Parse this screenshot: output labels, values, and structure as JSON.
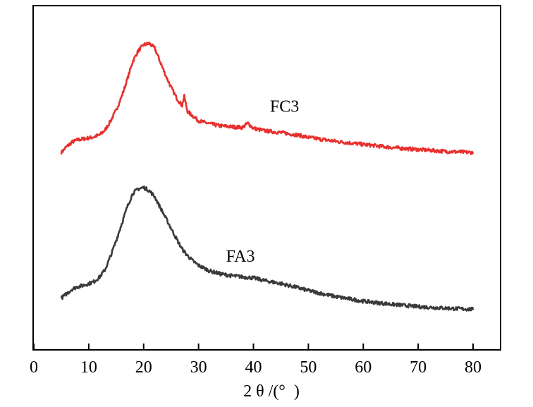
{
  "chart_data": {
    "type": "line",
    "title": "",
    "xlabel": "2 θ /(°  )",
    "ylabel": "",
    "xlim": [
      0,
      85
    ],
    "ylim": [
      0,
      1
    ],
    "x_ticks": [
      0,
      10,
      20,
      30,
      40,
      50,
      60,
      70,
      80
    ],
    "y_ticks_shown": false,
    "grid": false,
    "legend": "none",
    "series": [
      {
        "name": "FC3",
        "color": "#e8302e",
        "label_at": [
          43,
          0.725
        ],
        "points": [
          [
            5,
            0.59
          ],
          [
            6,
            0.61
          ],
          [
            7,
            0.625
          ],
          [
            8,
            0.632
          ],
          [
            9,
            0.635
          ],
          [
            10,
            0.638
          ],
          [
            11,
            0.642
          ],
          [
            12,
            0.648
          ],
          [
            13,
            0.665
          ],
          [
            14,
            0.695
          ],
          [
            15,
            0.73
          ],
          [
            16,
            0.775
          ],
          [
            17,
            0.83
          ],
          [
            18,
            0.89
          ],
          [
            19,
            0.925
          ],
          [
            20,
            0.945
          ],
          [
            21,
            0.95
          ],
          [
            22,
            0.935
          ],
          [
            23,
            0.89
          ],
          [
            24,
            0.845
          ],
          [
            25,
            0.805
          ],
          [
            26,
            0.77
          ],
          [
            27,
            0.745
          ],
          [
            27.4,
            0.775
          ],
          [
            27.8,
            0.74
          ],
          [
            28,
            0.725
          ],
          [
            29,
            0.71
          ],
          [
            30,
            0.695
          ],
          [
            32,
            0.685
          ],
          [
            34,
            0.678
          ],
          [
            36,
            0.675
          ],
          [
            38,
            0.673
          ],
          [
            39,
            0.687
          ],
          [
            40,
            0.67
          ],
          [
            42,
            0.662
          ],
          [
            45,
            0.656
          ],
          [
            48,
            0.648
          ],
          [
            50,
            0.64
          ],
          [
            55,
            0.627
          ],
          [
            60,
            0.617
          ],
          [
            65,
            0.607
          ],
          [
            70,
            0.6
          ],
          [
            75,
            0.594
          ],
          [
            80,
            0.59
          ]
        ]
      },
      {
        "name": "FA3",
        "color": "#3a3a3a",
        "label_at": [
          35,
          0.23
        ],
        "points": [
          [
            5,
            0.11
          ],
          [
            6,
            0.125
          ],
          [
            7,
            0.14
          ],
          [
            8,
            0.148
          ],
          [
            9,
            0.152
          ],
          [
            10,
            0.158
          ],
          [
            11,
            0.165
          ],
          [
            12,
            0.18
          ],
          [
            13,
            0.205
          ],
          [
            14,
            0.25
          ],
          [
            15,
            0.3
          ],
          [
            16,
            0.355
          ],
          [
            17,
            0.41
          ],
          [
            18,
            0.455
          ],
          [
            19,
            0.47
          ],
          [
            20,
            0.475
          ],
          [
            21,
            0.465
          ],
          [
            22,
            0.445
          ],
          [
            23,
            0.41
          ],
          [
            24,
            0.375
          ],
          [
            25,
            0.34
          ],
          [
            26,
            0.305
          ],
          [
            27,
            0.272
          ],
          [
            28,
            0.25
          ],
          [
            29,
            0.232
          ],
          [
            30,
            0.218
          ],
          [
            32,
            0.2
          ],
          [
            34,
            0.19
          ],
          [
            36,
            0.184
          ],
          [
            38,
            0.18
          ],
          [
            40,
            0.177
          ],
          [
            42,
            0.168
          ],
          [
            45,
            0.158
          ],
          [
            48,
            0.145
          ],
          [
            50,
            0.135
          ],
          [
            55,
            0.115
          ],
          [
            60,
            0.1
          ],
          [
            65,
            0.09
          ],
          [
            70,
            0.082
          ],
          [
            75,
            0.077
          ],
          [
            80,
            0.073
          ]
        ]
      }
    ]
  }
}
